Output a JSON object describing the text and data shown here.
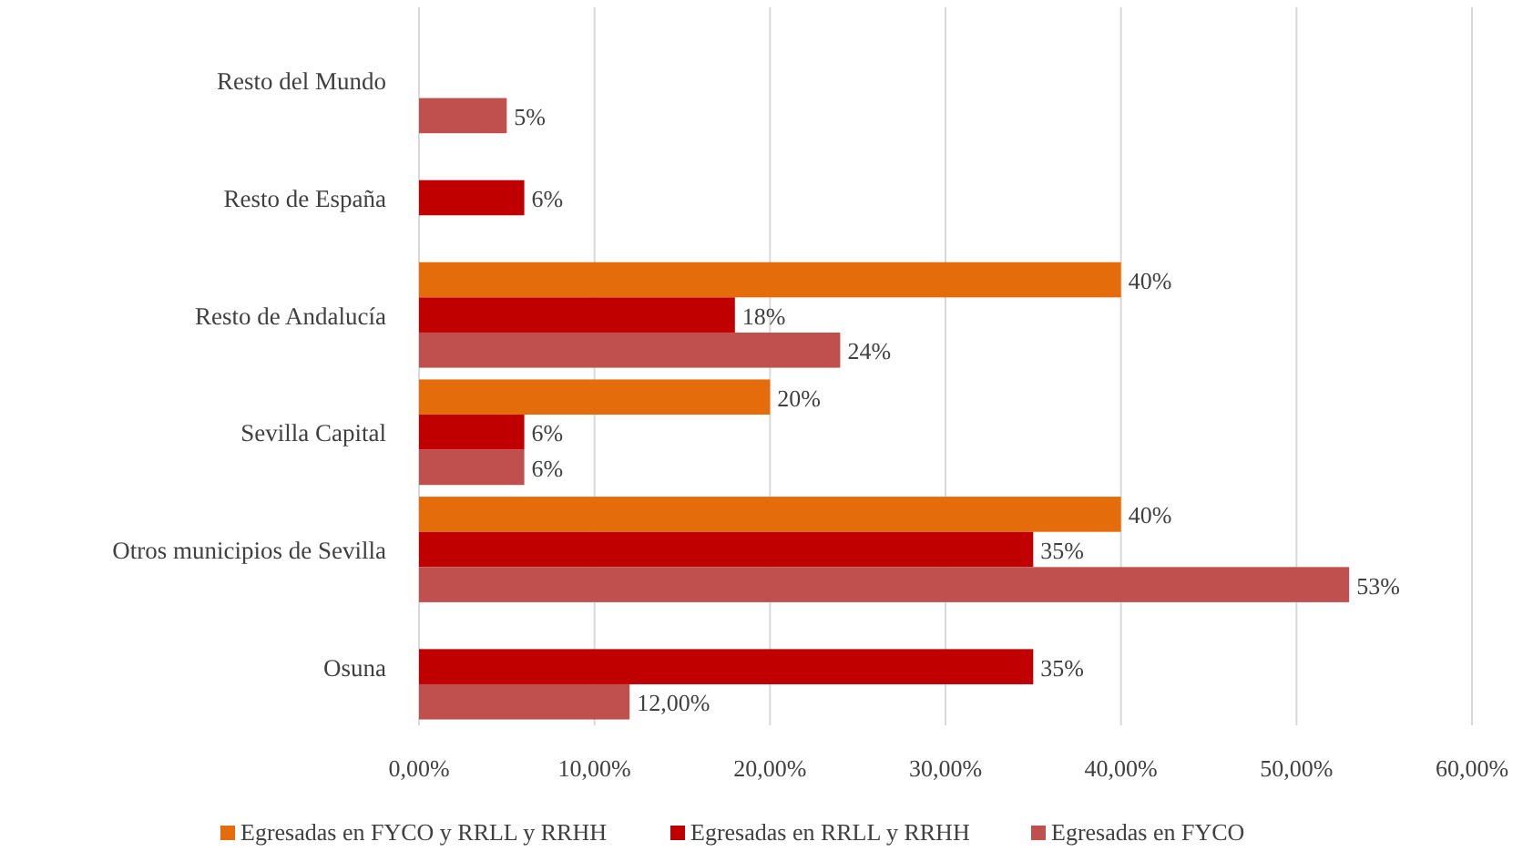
{
  "chart_data": {
    "type": "bar",
    "orientation": "horizontal",
    "categories": [
      "Resto del Mundo",
      "Resto de España",
      "Resto de Andalucía",
      "Sevilla Capital",
      "Otros municipios de Sevilla",
      "Osuna"
    ],
    "series": [
      {
        "name": "Egresadas en FYCO y RRLL y RRHH",
        "color": "#e46c0a",
        "values": [
          null,
          null,
          40,
          20,
          40,
          null
        ],
        "value_labels": [
          null,
          null,
          "40%",
          "20%",
          "40%",
          null
        ]
      },
      {
        "name": "Egresadas en RRLL y RRHH",
        "color": "#c00000",
        "values": [
          null,
          6,
          18,
          6,
          35,
          35
        ],
        "value_labels": [
          null,
          "6%",
          "18%",
          "6%",
          "35%",
          "35%"
        ]
      },
      {
        "name": "Egresadas en FYCO",
        "color": "#c0504d",
        "values": [
          5,
          null,
          24,
          6,
          53,
          12
        ],
        "value_labels": [
          "5%",
          null,
          "24%",
          "6%",
          "53%",
          "12,00%"
        ]
      }
    ],
    "xlim": [
      0,
      60
    ],
    "xticks": [
      {
        "value": 0,
        "label": "0,00%"
      },
      {
        "value": 10,
        "label": "10,00%"
      },
      {
        "value": 20,
        "label": "20,00%"
      },
      {
        "value": 30,
        "label": "30,00%"
      },
      {
        "value": 40,
        "label": "40,00%"
      },
      {
        "value": 50,
        "label": "50,00%"
      },
      {
        "value": 60,
        "label": "60,00%"
      }
    ],
    "grid": "x",
    "legend": "bottom"
  }
}
